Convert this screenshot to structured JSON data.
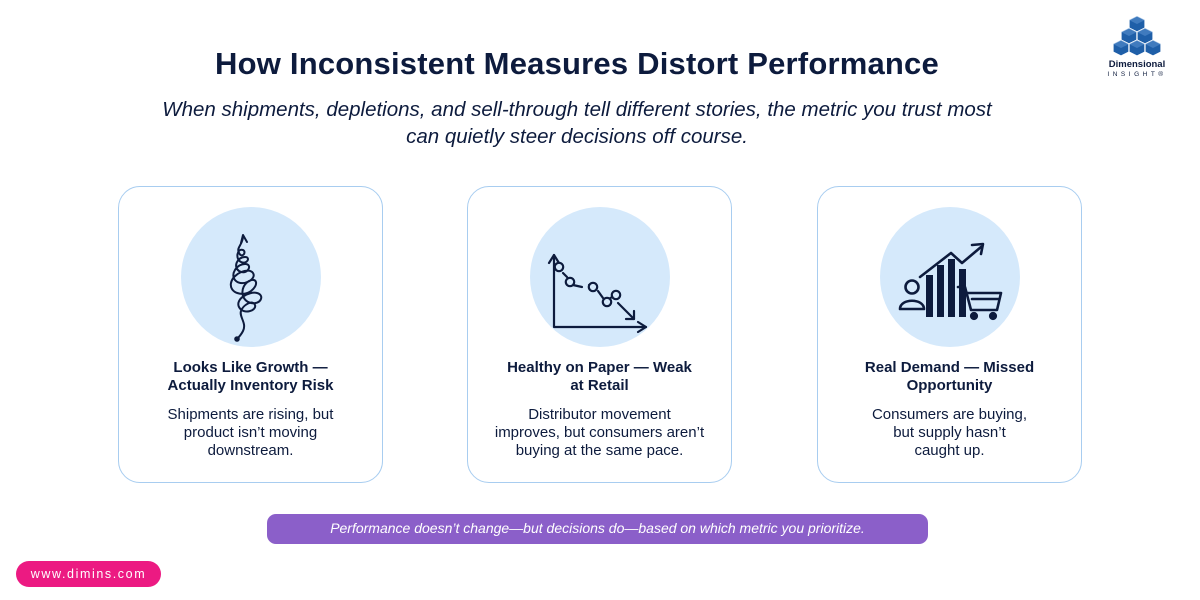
{
  "header": {
    "title": "How Inconsistent Measures Distort Performance",
    "subtitle_line1": "When shipments, depletions, and sell-through tell different stories, the metric you trust most",
    "subtitle_line2": "can quietly steer decisions off course."
  },
  "logo": {
    "name": "Dimensional",
    "sub": "INSIGHT®",
    "color": "#1f5fa8"
  },
  "cards": [
    {
      "icon": "tangled-arrow-icon",
      "title_line1": "Looks Like Growth —",
      "title_line2": "Actually Inventory Risk",
      "body_line1": "Shipments are rising, but",
      "body_line2": "product isn’t moving",
      "body_line3": "downstream."
    },
    {
      "icon": "declining-line-chart-icon",
      "title_line1": "Healthy on Paper — Weak",
      "title_line2": "at Retail",
      "body_line1": "Distributor movement",
      "body_line2": "improves, but consumers aren’t",
      "body_line3": "buying at the same pace."
    },
    {
      "icon": "demand-growth-cart-icon",
      "title_line1": "Real Demand — Missed",
      "title_line2": "Opportunity",
      "body_line1": "Consumers are buying,",
      "body_line2": "but supply hasn’t",
      "body_line3": "caught up."
    }
  ],
  "banner": {
    "text": "Performance doesn’t change—but decisions do—based on which metric you prioritize."
  },
  "footer": {
    "url": "www.dimins.com"
  },
  "colors": {
    "navy": "#0d1b3d",
    "circle": "#d5e9fb",
    "card_border": "#a8cdf0",
    "banner": "#8b5fc9",
    "url_pill": "#ec1a82"
  }
}
